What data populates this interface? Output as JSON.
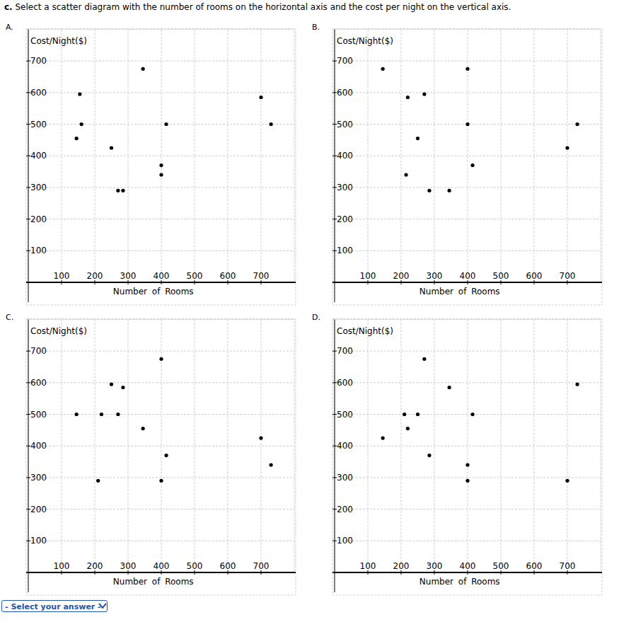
{
  "question": {
    "part": "c.",
    "text": "Select a scatter diagram with the number of rooms on the horizontal axis and the cost per night on the vertical axis."
  },
  "answer_select": "- Select your answer -",
  "chart_data": [
    {
      "type": "scatter",
      "title": "A.",
      "x_label": "Number of Rooms",
      "y_label": "Cost/Night($)",
      "x": [
        145,
        155,
        160,
        250,
        270,
        285,
        345,
        400,
        400,
        415,
        700,
        730
      ],
      "values": [
        455,
        595,
        500,
        425,
        290,
        290,
        675,
        370,
        340,
        500,
        585,
        500
      ],
      "xlim": [
        0,
        800
      ],
      "ylim": [
        0,
        800
      ],
      "xticks": [
        100,
        200,
        300,
        400,
        500,
        600,
        700
      ],
      "yticks": [
        100,
        200,
        300,
        400,
        500,
        600,
        700
      ],
      "grid": true,
      "marker": "circle",
      "color": "#000000"
    },
    {
      "type": "scatter",
      "title": "B.",
      "x_label": "Number of Rooms",
      "y_label": "Cost/Night($)",
      "x": [
        145,
        220,
        270,
        250,
        215,
        285,
        345,
        400,
        400,
        415,
        700,
        730
      ],
      "values": [
        675,
        585,
        595,
        455,
        340,
        290,
        290,
        675,
        500,
        370,
        425,
        500
      ],
      "xlim": [
        0,
        800
      ],
      "ylim": [
        0,
        800
      ],
      "xticks": [
        100,
        200,
        300,
        400,
        500,
        600,
        700
      ],
      "yticks": [
        100,
        200,
        300,
        400,
        500,
        600,
        700
      ],
      "grid": true,
      "marker": "circle",
      "color": "#000000"
    },
    {
      "type": "scatter",
      "title": "C.",
      "x_label": "Number of Rooms",
      "y_label": "Cost/Night($)",
      "x": [
        145,
        220,
        210,
        250,
        270,
        285,
        345,
        400,
        400,
        415,
        700,
        730
      ],
      "values": [
        500,
        500,
        290,
        595,
        500,
        585,
        455,
        675,
        290,
        370,
        425,
        340
      ],
      "xlim": [
        0,
        800
      ],
      "ylim": [
        0,
        800
      ],
      "xticks": [
        100,
        200,
        300,
        400,
        500,
        600,
        700
      ],
      "yticks": [
        100,
        200,
        300,
        400,
        500,
        600,
        700
      ],
      "grid": true,
      "marker": "circle",
      "color": "#000000"
    },
    {
      "type": "scatter",
      "title": "D.",
      "x_label": "Number of Rooms",
      "y_label": "Cost/Night($)",
      "x": [
        145,
        210,
        220,
        250,
        270,
        285,
        345,
        400,
        400,
        415,
        700,
        730
      ],
      "values": [
        425,
        500,
        455,
        500,
        675,
        370,
        585,
        340,
        290,
        500,
        290,
        595
      ],
      "xlim": [
        0,
        800
      ],
      "ylim": [
        0,
        800
      ],
      "xticks": [
        100,
        200,
        300,
        400,
        500,
        600,
        700
      ],
      "yticks": [
        100,
        200,
        300,
        400,
        500,
        600,
        700
      ],
      "grid": true,
      "marker": "circle",
      "color": "#000000"
    }
  ]
}
